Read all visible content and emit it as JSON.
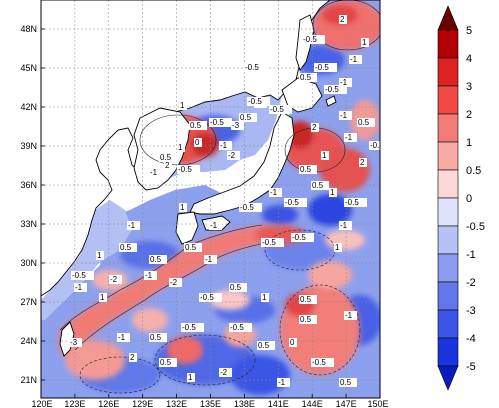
{
  "map": {
    "lat_ticks": [
      "48N",
      "45N",
      "42N",
      "39N",
      "36N",
      "33N",
      "30N",
      "27N",
      "24N",
      "21N"
    ],
    "lon_ticks": [
      "120E",
      "123E",
      "126E",
      "129E",
      "132E",
      "135E",
      "138E",
      "141E",
      "144E",
      "147E",
      "150E"
    ],
    "lat_range": [
      20,
      50
    ],
    "lon_range": [
      120,
      150
    ],
    "grid": "dashed",
    "land_color": "#ffffff",
    "coast_color": "#000000",
    "contour_labels": [
      "2",
      "-0.5",
      "-0.5",
      "-1",
      "-0.5",
      "0.5",
      "-1",
      "1",
      "-0.5",
      "1",
      "-1",
      "-0.5",
      "-0.5",
      "0.5",
      "-0.5",
      "-3",
      "0.5",
      "0",
      "-1",
      "1",
      "-2",
      "0.5",
      "2",
      "-0.5",
      "-1",
      "2",
      "-1",
      "0.5",
      "1",
      "0.5",
      "-1",
      "-0.5",
      "2",
      "0.5",
      "1",
      "-0.5",
      "-1",
      "-0.5",
      "-0.5",
      "1",
      "-1",
      "-1",
      "-0.5",
      "-0.5",
      "-1",
      "1",
      "0.5",
      "-1",
      "0.5",
      "-1",
      "0.5",
      "1",
      "-0.5",
      "-2",
      "-1",
      "1",
      "-2",
      "-0.5",
      "0.5",
      "1",
      "0.5",
      "-1",
      "0.5",
      "-0.5",
      "-0.5",
      "0.5",
      "-1",
      "-3",
      "0.5",
      "0",
      "-0.5",
      "-2",
      "1",
      "0.5",
      "2",
      "-1",
      "0.5"
    ]
  },
  "colorbar": {
    "labels": [
      "5",
      "4",
      "3",
      "2",
      "1",
      "0.5",
      "0",
      "-0.5",
      "-1",
      "-2",
      "-3",
      "-4",
      "-5"
    ],
    "colors": [
      "#6b0000",
      "#b40000",
      "#dd2222",
      "#f04a48",
      "#f47c78",
      "#f8aaa6",
      "#fcd8d6",
      "#dfe3fb",
      "#b6c1f4",
      "#8b9cf0",
      "#6277ea",
      "#3c55e6",
      "#1c34dd",
      "#0a1dbb"
    ]
  }
}
